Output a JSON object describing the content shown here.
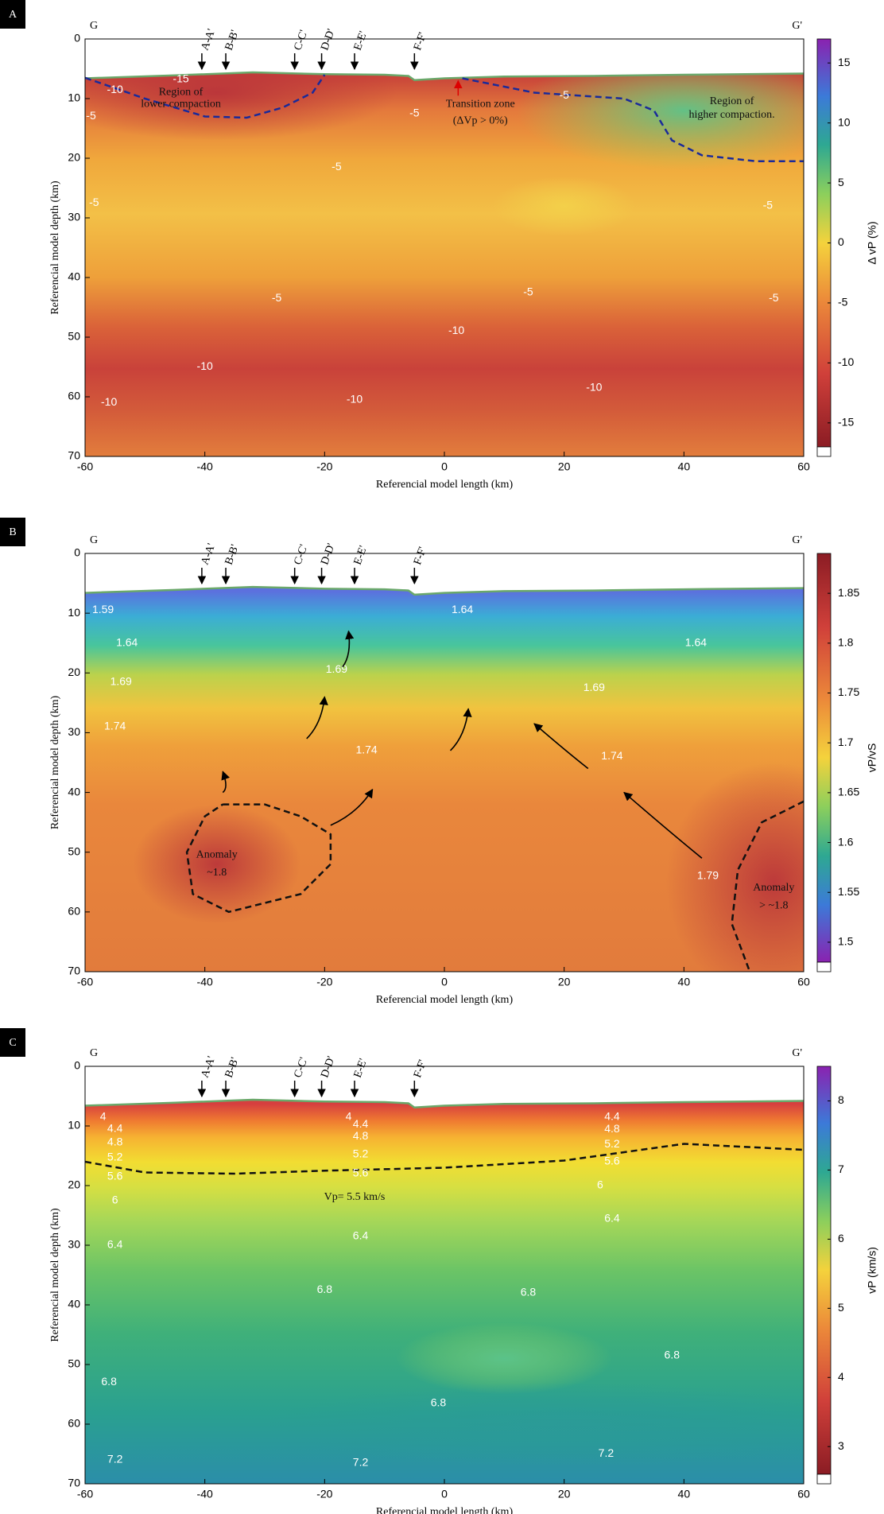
{
  "chart_data": [
    {
      "type": "contour",
      "panel_label": "A",
      "x_label": "Referencial model length (km)",
      "y_label": "Referencial model depth (km)",
      "xlim": [
        -60,
        60
      ],
      "xticks": [
        -60,
        -40,
        -20,
        0,
        20,
        40,
        60
      ],
      "ylim": [
        0,
        70
      ],
      "yticks": [
        0,
        10,
        20,
        30,
        40,
        50,
        60,
        70
      ],
      "y_inverted": true,
      "colorbar_label": "Δ vP (%)",
      "clim": [
        -17,
        17
      ],
      "cticks": [
        -15,
        -10,
        -5,
        0,
        5,
        10,
        15
      ],
      "section_ends": [
        "G",
        "G'"
      ],
      "sections": [
        "A-A'",
        "B-B'",
        "C-C'",
        "D-D'",
        "E-E'",
        "F-F'"
      ],
      "contour_labels": [
        -15,
        -10,
        -5,
        -5,
        -5,
        -5,
        -5,
        -5,
        -5,
        -5,
        -5,
        -10,
        -10,
        -10,
        -10,
        -10
      ],
      "annotations": [
        "Region of",
        "lower compaction",
        "Transition zone",
        "(ΔVp > 0%)",
        "Region of",
        "higher compaction."
      ]
    },
    {
      "type": "contour",
      "panel_label": "B",
      "x_label": "Referencial model length (km)",
      "y_label": "Referencial model depth (km)",
      "xlim": [
        -60,
        60
      ],
      "xticks": [
        -60,
        -40,
        -20,
        0,
        20,
        40,
        60
      ],
      "ylim": [
        0,
        70
      ],
      "yticks": [
        0,
        10,
        20,
        30,
        40,
        50,
        60,
        70
      ],
      "y_inverted": true,
      "colorbar_label": "vP/vS",
      "clim": [
        1.48,
        1.89
      ],
      "cticks": [
        1.5,
        1.55,
        1.6,
        1.65,
        1.7,
        1.75,
        1.8,
        1.85
      ],
      "section_ends": [
        "G",
        "G'"
      ],
      "sections": [
        "A-A'",
        "B-B'",
        "C-C'",
        "D-D'",
        "E-E'",
        "F-F'"
      ],
      "contour_labels": [
        1.59,
        1.64,
        1.64,
        1.64,
        1.69,
        1.69,
        1.69,
        1.74,
        1.74,
        1.74,
        1.79
      ],
      "annotations": [
        "Anomaly",
        "~1.8",
        "Anomaly",
        "> ~1.8"
      ]
    },
    {
      "type": "contour",
      "panel_label": "C",
      "x_label": "Referencial model length (km)",
      "y_label": "Referencial model depth (km)",
      "xlim": [
        -60,
        60
      ],
      "xticks": [
        -60,
        -40,
        -20,
        0,
        20,
        40,
        60
      ],
      "ylim": [
        0,
        70
      ],
      "yticks": [
        0,
        10,
        20,
        30,
        40,
        50,
        60,
        70
      ],
      "y_inverted": true,
      "colorbar_label": "vP (km/s)",
      "clim": [
        2.6,
        8.5
      ],
      "cticks": [
        3,
        4,
        5,
        6,
        7,
        8
      ],
      "section_ends": [
        "G",
        "G'"
      ],
      "sections": [
        "A-A'",
        "B-B'",
        "C-C'",
        "D-D'",
        "E-E'",
        "F-F'"
      ],
      "contour_labels": [
        4,
        4.4,
        4.8,
        5.2,
        5.6,
        6,
        6.4,
        6.8,
        4,
        4.4,
        4.8,
        5.2,
        5.6,
        6.4,
        6.8,
        4.4,
        4.8,
        5.2,
        5.6,
        6,
        6.4,
        6.8,
        6.8,
        6.8,
        7.2,
        7.2,
        7.2
      ],
      "annotations": [
        "Vp= 5.5 km/s"
      ]
    }
  ]
}
